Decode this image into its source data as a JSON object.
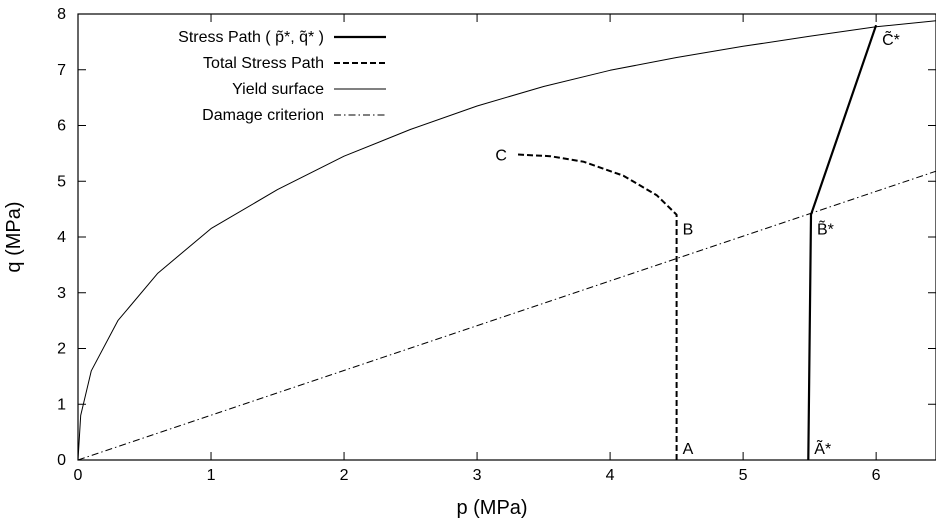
{
  "chart_data": {
    "type": "line",
    "xlabel": "p (MPa)",
    "ylabel": "q (MPa)",
    "xlim": [
      0,
      6.45
    ],
    "ylim": [
      0,
      8
    ],
    "xticks": [
      "0",
      "1",
      "2",
      "3",
      "4",
      "5",
      "6"
    ],
    "yticks": [
      "0",
      "1",
      "2",
      "3",
      "4",
      "5",
      "6",
      "7",
      "8"
    ],
    "grid": false,
    "legend": "top-left",
    "series": [
      {
        "name": "Stress Path ( p̃*, q̃* )",
        "style": "solid-thick",
        "x": [
          5.49,
          5.51,
          6.0
        ],
        "y": [
          0.0,
          4.4,
          7.8
        ]
      },
      {
        "name": "Total Stress Path",
        "style": "dashed",
        "x": [
          4.5,
          4.5,
          4.35,
          4.1,
          3.8,
          3.55,
          3.3
        ],
        "y": [
          0.0,
          4.4,
          4.75,
          5.1,
          5.35,
          5.45,
          5.48
        ]
      },
      {
        "name": "Yield surface",
        "style": "solid-thin",
        "x": [
          0.0,
          0.02,
          0.1,
          0.3,
          0.6,
          1.0,
          1.5,
          2.0,
          2.5,
          3.0,
          3.5,
          4.0,
          4.5,
          5.0,
          5.5,
          6.0,
          6.45
        ],
        "y": [
          0.0,
          0.8,
          1.6,
          2.5,
          3.35,
          4.15,
          4.85,
          5.45,
          5.93,
          6.35,
          6.7,
          6.99,
          7.22,
          7.42,
          7.6,
          7.77,
          7.88
        ]
      },
      {
        "name": "Damage criterion",
        "style": "dash-dot",
        "x": [
          0.0,
          6.45
        ],
        "y": [
          0.0,
          5.18
        ]
      }
    ],
    "annotations": [
      {
        "text": "A",
        "x": 4.5,
        "y": 0.0,
        "anchor": "right-above"
      },
      {
        "text": "B",
        "x": 4.5,
        "y": 4.4,
        "anchor": "right-below"
      },
      {
        "text": "C",
        "x": 3.3,
        "y": 5.48,
        "anchor": "left"
      },
      {
        "text": "Ã*",
        "x": 5.49,
        "y": 0.0,
        "anchor": "right-above"
      },
      {
        "text": "B̃*",
        "x": 5.51,
        "y": 4.4,
        "anchor": "right-below"
      },
      {
        "text": "C̃*",
        "x": 6.0,
        "y": 7.8,
        "anchor": "right-below"
      }
    ],
    "colors": {
      "axes": "#000000",
      "lines": "#000000",
      "background": "#ffffff"
    }
  }
}
